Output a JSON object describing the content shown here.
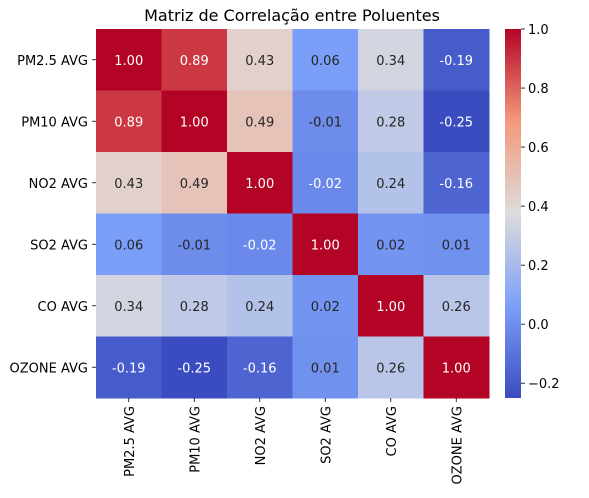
{
  "chart_data": {
    "type": "heatmap",
    "title": "Matriz de Correlação entre Poluentes",
    "rows": [
      "PM2.5 AVG",
      "PM10 AVG",
      "NO2 AVG",
      "SO2 AVG",
      "CO AVG",
      "OZONE AVG"
    ],
    "columns": [
      "PM2.5 AVG",
      "PM10 AVG",
      "NO2 AVG",
      "SO2 AVG",
      "CO AVG",
      "OZONE AVG"
    ],
    "values": [
      [
        1.0,
        0.89,
        0.43,
        0.06,
        0.34,
        -0.19
      ],
      [
        0.89,
        1.0,
        0.49,
        -0.01,
        0.28,
        -0.25
      ],
      [
        0.43,
        0.49,
        1.0,
        -0.02,
        0.24,
        -0.16
      ],
      [
        0.06,
        -0.01,
        -0.02,
        1.0,
        0.02,
        0.01
      ],
      [
        0.34,
        0.28,
        0.24,
        0.02,
        1.0,
        0.26
      ],
      [
        -0.19,
        -0.25,
        -0.16,
        0.01,
        0.26,
        1.0
      ]
    ],
    "annotation_format": "0.00",
    "colormap": "coolwarm",
    "color_range": [
      -0.25,
      1.0
    ],
    "colorbar_ticks": [
      -0.2,
      0.0,
      0.2,
      0.4,
      0.6,
      0.8,
      1.0
    ],
    "colorbar_tick_labels": [
      "−0.2",
      "0.0",
      "0.2",
      "0.4",
      "0.6",
      "0.8",
      "1.0"
    ]
  }
}
